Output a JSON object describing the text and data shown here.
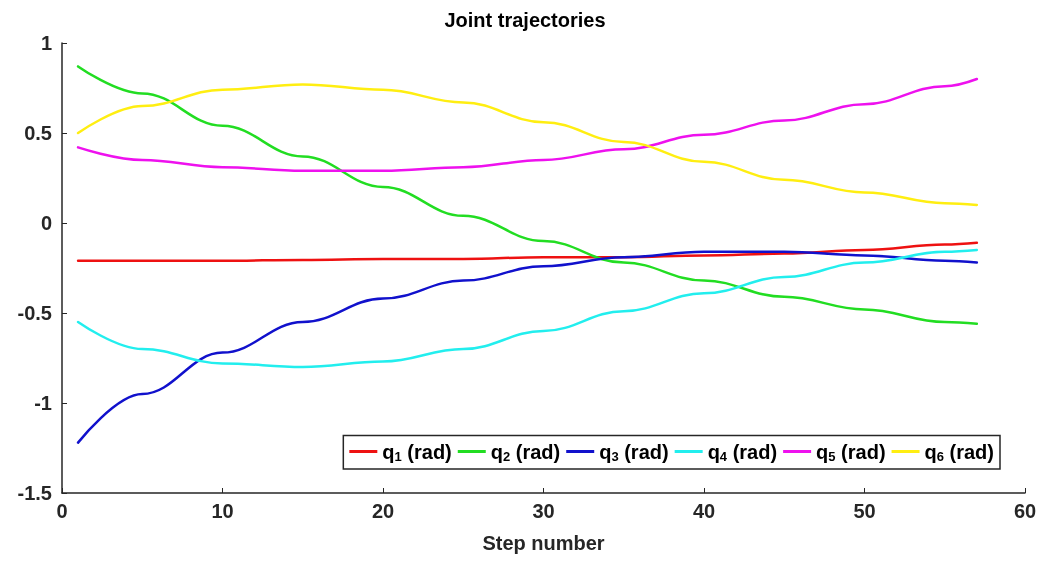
{
  "chart_data": {
    "type": "line",
    "title": "Joint trajectories",
    "xlabel": "Step number",
    "x": [
      1,
      5,
      10,
      15,
      20,
      25,
      30,
      35,
      40,
      45,
      50,
      55,
      57
    ],
    "series": [
      {
        "name": "q$_{1}$ (rad)",
        "color": "#ee1111",
        "values": [
          -0.21,
          -0.21,
          -0.21,
          -0.205,
          -0.2,
          -0.2,
          -0.19,
          -0.19,
          -0.18,
          -0.17,
          -0.15,
          -0.12,
          -0.11
        ]
      },
      {
        "name": "q$_{2}$ (rad)",
        "color": "#22dd22",
        "values": [
          0.87,
          0.72,
          0.54,
          0.37,
          0.2,
          0.04,
          -0.1,
          -0.22,
          -0.32,
          -0.41,
          -0.48,
          -0.55,
          -0.56
        ]
      },
      {
        "name": "q$_{3}$ (rad)",
        "color": "#1111cc",
        "values": [
          -1.22,
          -0.95,
          -0.72,
          -0.55,
          -0.42,
          -0.32,
          -0.24,
          -0.19,
          -0.16,
          -0.16,
          -0.18,
          -0.21,
          -0.22
        ]
      },
      {
        "name": "q$_{4}$ (rad)",
        "color": "#22eeee",
        "values": [
          -0.55,
          -0.7,
          -0.78,
          -0.8,
          -0.77,
          -0.7,
          -0.6,
          -0.49,
          -0.39,
          -0.3,
          -0.22,
          -0.16,
          -0.15
        ]
      },
      {
        "name": "q$_{5}$ (rad)",
        "color": "#ee11ee",
        "values": [
          0.42,
          0.35,
          0.31,
          0.29,
          0.29,
          0.31,
          0.35,
          0.41,
          0.49,
          0.57,
          0.66,
          0.76,
          0.8
        ]
      },
      {
        "name": "q$_{6}$ (rad)",
        "color": "#ffee11",
        "values": [
          0.5,
          0.65,
          0.74,
          0.77,
          0.74,
          0.67,
          0.56,
          0.45,
          0.34,
          0.24,
          0.17,
          0.11,
          0.1
        ]
      }
    ],
    "xlim": [
      0,
      60
    ],
    "xticks": [
      0,
      10,
      20,
      30,
      40,
      50,
      60
    ],
    "ylim": [
      -1.5,
      1
    ],
    "yticks": [
      -1.5,
      -1,
      -0.5,
      0,
      0.5,
      1
    ],
    "grid": false,
    "legend": "bottom right",
    "marker": "none",
    "line_style": "solid"
  }
}
